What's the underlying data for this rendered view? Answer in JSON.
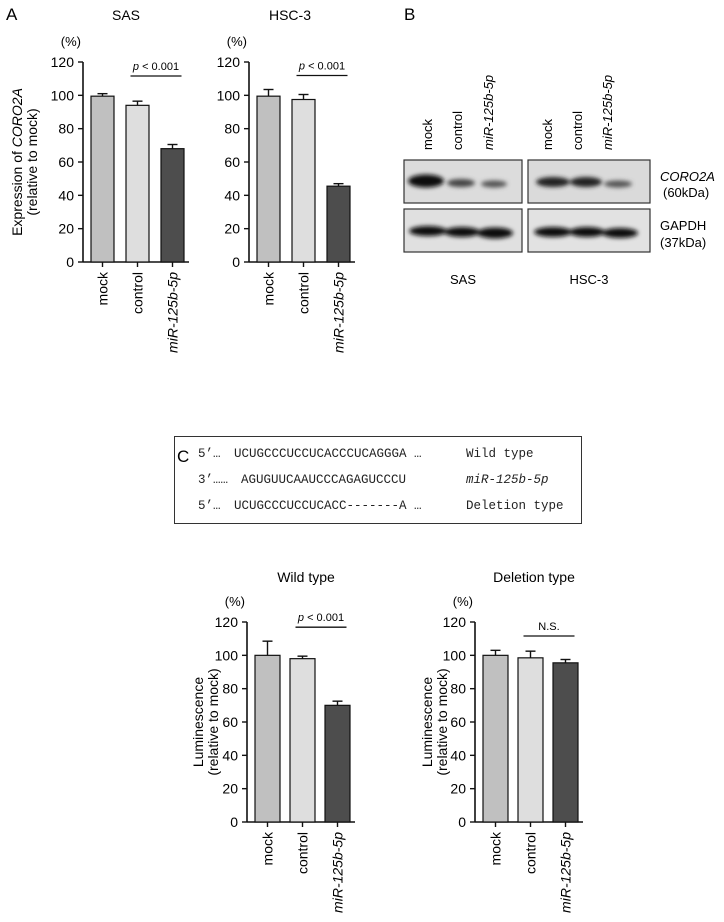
{
  "panel_labels": {
    "A": "A",
    "B": "B",
    "C": "C"
  },
  "colors": {
    "mock": "#c0c0c0",
    "control": "#dedede",
    "mir": "#4d4d4d",
    "axis": "#111111"
  },
  "chart_data": [
    {
      "id": "A-SAS",
      "type": "bar",
      "title": "SAS",
      "ylabel_line1": "Expression of CORO2A",
      "ylabel_line2": "(relative to mock)",
      "unit": "(%)",
      "categories": [
        "mock",
        "control",
        "miR-125b-5p"
      ],
      "values": [
        99.5,
        94,
        68
      ],
      "errors": [
        1.5,
        2.5,
        2.5
      ],
      "ylim": [
        0,
        120
      ],
      "yticks": [
        0,
        20,
        40,
        60,
        80,
        100,
        120
      ],
      "annotation": {
        "text": "p < 0.001",
        "from": 1,
        "to": 2
      },
      "grid": false
    },
    {
      "id": "A-HSC3",
      "type": "bar",
      "title": "HSC-3",
      "unit": "(%)",
      "categories": [
        "mock",
        "control",
        "miR-125b-5p"
      ],
      "values": [
        99.5,
        97.5,
        45.5
      ],
      "errors": [
        4,
        3,
        1.5
      ],
      "ylim": [
        0,
        120
      ],
      "yticks": [
        0,
        20,
        40,
        60,
        80,
        100,
        120
      ],
      "annotation": {
        "text": "p < 0.001",
        "from": 1,
        "to": 2
      },
      "grid": false
    },
    {
      "id": "C-WT",
      "type": "bar",
      "title": "Wild type",
      "ylabel_line1": "Luminescence",
      "ylabel_line2": "(relative to mock)",
      "unit": "(%)",
      "categories": [
        "mock",
        "control",
        "miR-125b-5p"
      ],
      "values": [
        100,
        98,
        70
      ],
      "errors": [
        8.5,
        1.5,
        2.5
      ],
      "ylim": [
        0,
        120
      ],
      "yticks": [
        0,
        20,
        40,
        60,
        80,
        100,
        120
      ],
      "annotation": {
        "text": "p < 0.001",
        "from": 1,
        "to": 2
      },
      "grid": false
    },
    {
      "id": "C-DEL",
      "type": "bar",
      "title": "Deletion type",
      "ylabel_line1": "Luminescence",
      "ylabel_line2": "(relative to mock)",
      "unit": "(%)",
      "categories": [
        "mock",
        "control",
        "miR-125b-5p"
      ],
      "values": [
        100,
        98.5,
        95.5
      ],
      "errors": [
        3,
        4,
        2
      ],
      "ylim": [
        0,
        120
      ],
      "yticks": [
        0,
        20,
        40,
        60,
        80,
        100,
        120
      ],
      "annotation": {
        "text": "N.S.",
        "from": 1,
        "to": 2
      },
      "grid": false
    }
  ],
  "western": {
    "lanes": [
      "mock",
      "control",
      "miR-125b-5p"
    ],
    "groups": [
      "SAS",
      "HSC-3"
    ],
    "protein1": "CORO2A",
    "protein1_size": "(60kDa)",
    "protein2": "GAPDH",
    "protein2_size": "(37kDa)"
  },
  "sequences": [
    {
      "prefix": "5’…",
      "seq": "UCUGCCCUCCUCACCCUCAGGGA …",
      "label": "Wild type"
    },
    {
      "prefix": "3’……",
      "seq": "AGUGUUCAAUCCCAGAGUCCCU",
      "label": "miR-125b-5p"
    },
    {
      "prefix": "5’…",
      "seq": "UCUGCCCUCCUCACC-------A …",
      "label": "Deletion type"
    }
  ]
}
